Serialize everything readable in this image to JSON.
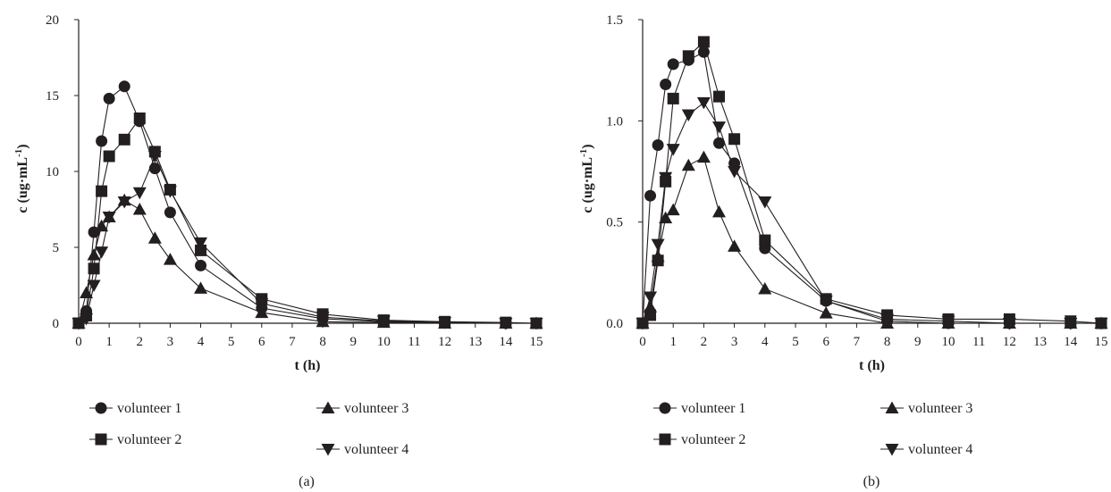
{
  "colors": {
    "ink": "#231f20",
    "background": "#ffffff"
  },
  "chart_data": [
    {
      "type": "line",
      "panel_label": "(a)",
      "xlabel": "t (h)",
      "ylabel_main": "c (ug·mL",
      "ylabel_sup": "-1",
      "ylabel_close": ")",
      "xlim": [
        0,
        15
      ],
      "ylim": [
        0,
        20
      ],
      "xticks": [
        0,
        1,
        2,
        3,
        4,
        5,
        6,
        7,
        8,
        9,
        10,
        11,
        12,
        13,
        14,
        15
      ],
      "yticks": [
        "0",
        "5",
        "10",
        "15",
        "20"
      ],
      "ytick_values": [
        0,
        5,
        10,
        15,
        20
      ],
      "grid": false,
      "legend": "bottom",
      "series": [
        {
          "name": "volunteer 1",
          "marker": "circle",
          "x": [
            0,
            0.25,
            0.5,
            0.75,
            1,
            1.5,
            2,
            2.5,
            3,
            4,
            6,
            8,
            10,
            12,
            14,
            15
          ],
          "y": [
            0,
            0.8,
            6.0,
            12.0,
            14.8,
            15.6,
            13.3,
            10.2,
            7.3,
            3.8,
            1.0,
            0.3,
            0.1,
            0.05,
            0,
            0
          ]
        },
        {
          "name": "volunteer 2",
          "marker": "square",
          "x": [
            0,
            0.25,
            0.5,
            0.75,
            1,
            1.5,
            2,
            2.5,
            3,
            4,
            6,
            8,
            10,
            12,
            14,
            15
          ],
          "y": [
            0,
            0.5,
            3.6,
            8.7,
            11.0,
            12.1,
            13.5,
            11.3,
            8.8,
            4.8,
            1.6,
            0.6,
            0.2,
            0.1,
            0.05,
            0
          ]
        },
        {
          "name": "volunteer 3",
          "marker": "triangle-up",
          "x": [
            0,
            0.25,
            0.5,
            0.75,
            1,
            1.5,
            2,
            2.5,
            3,
            4,
            6,
            8,
            10,
            12,
            14,
            15
          ],
          "y": [
            0,
            2.0,
            4.5,
            6.4,
            7.0,
            8.1,
            7.5,
            5.6,
            4.2,
            2.3,
            0.7,
            0.1,
            0.05,
            0,
            0,
            0
          ]
        },
        {
          "name": "volunteer 4",
          "marker": "triangle-down",
          "x": [
            0,
            0.25,
            0.5,
            0.75,
            1,
            1.5,
            2,
            2.5,
            3,
            4,
            6,
            8,
            10,
            12,
            14,
            15
          ],
          "y": [
            0,
            0.3,
            2.5,
            4.7,
            7.0,
            8.0,
            8.6,
            11.0,
            8.7,
            5.3,
            1.3,
            0.4,
            0.15,
            0.05,
            0,
            0
          ]
        }
      ]
    },
    {
      "type": "line",
      "panel_label": "(b)",
      "xlabel": "t (h)",
      "ylabel_main": "c (ug·mL",
      "ylabel_sup": "-1",
      "ylabel_close": ")",
      "xlim": [
        0,
        15
      ],
      "ylim": [
        0,
        1.5
      ],
      "xticks": [
        0,
        1,
        2,
        3,
        4,
        5,
        6,
        7,
        8,
        9,
        10,
        11,
        12,
        13,
        14,
        15
      ],
      "yticks": [
        "0.0",
        "0.5",
        "1.0",
        "1.5"
      ],
      "ytick_values": [
        0,
        0.5,
        1.0,
        1.5
      ],
      "grid": false,
      "legend": "bottom",
      "series": [
        {
          "name": "volunteer 1",
          "marker": "circle",
          "x": [
            0,
            0.25,
            0.5,
            0.75,
            1,
            1.5,
            2,
            2.5,
            3,
            4,
            6,
            8,
            10,
            12,
            14,
            15
          ],
          "y": [
            0,
            0.63,
            0.88,
            1.18,
            1.28,
            1.3,
            1.34,
            0.89,
            0.79,
            0.37,
            0.11,
            0.01,
            0,
            0,
            0,
            0
          ]
        },
        {
          "name": "volunteer 2",
          "marker": "square",
          "x": [
            0,
            0.25,
            0.5,
            0.75,
            1,
            1.5,
            2,
            2.5,
            3,
            4,
            6,
            8,
            10,
            12,
            14,
            15
          ],
          "y": [
            0,
            0.04,
            0.31,
            0.7,
            1.11,
            1.32,
            1.39,
            1.12,
            0.91,
            0.41,
            0.12,
            0.04,
            0.02,
            0.02,
            0.01,
            0
          ]
        },
        {
          "name": "volunteer 3",
          "marker": "triangle-up",
          "x": [
            0,
            0.25,
            0.5,
            0.75,
            1,
            1.5,
            2,
            2.5,
            3,
            4,
            6,
            8,
            10,
            12,
            14,
            15
          ],
          "y": [
            0,
            0.08,
            0.33,
            0.52,
            0.56,
            0.78,
            0.82,
            0.55,
            0.38,
            0.17,
            0.05,
            0,
            0,
            0,
            0,
            0
          ]
        },
        {
          "name": "volunteer 4",
          "marker": "triangle-down",
          "x": [
            0,
            0.25,
            0.5,
            0.75,
            1,
            1.5,
            2,
            2.5,
            3,
            4,
            6,
            8,
            10,
            12,
            14,
            15
          ],
          "y": [
            0,
            0.13,
            0.39,
            0.72,
            0.86,
            1.03,
            1.09,
            0.97,
            0.75,
            0.6,
            0.11,
            0.02,
            0.01,
            0,
            0,
            0
          ]
        }
      ]
    }
  ]
}
